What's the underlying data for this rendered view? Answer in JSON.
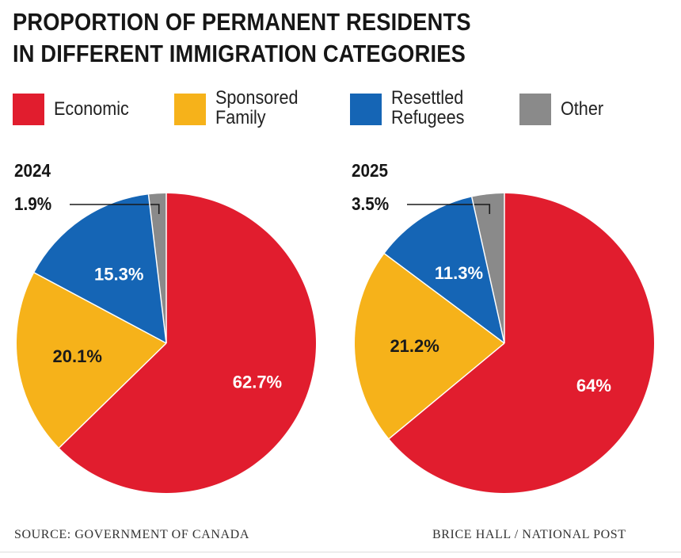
{
  "title_lines": [
    "PROPORTION OF PERMANENT RESIDENTS",
    "IN DIFFERENT IMMIGRATION CATEGORIES"
  ],
  "legend": [
    {
      "lines": [
        "Economic"
      ],
      "color": "#e11d2e"
    },
    {
      "lines": [
        "Sponsored",
        "Family"
      ],
      "color": "#f6b21a"
    },
    {
      "lines": [
        "Resettled",
        "Refugees"
      ],
      "color": "#1565b5"
    },
    {
      "lines": [
        "Other"
      ],
      "color": "#8a8a8a"
    }
  ],
  "chart_data": [
    {
      "type": "pie",
      "title": "2024",
      "labels": [
        "Economic",
        "Sponsored Family",
        "Resettled Refugees",
        "Other"
      ],
      "values": [
        62.7,
        20.1,
        15.3,
        1.9
      ],
      "value_labels": [
        "62.7%",
        "20.1%",
        "15.3%",
        "1.9%"
      ],
      "colors": [
        "#e11d2e",
        "#f6b21a",
        "#1565b5",
        "#8a8a8a"
      ]
    },
    {
      "type": "pie",
      "title": "2025",
      "labels": [
        "Economic",
        "Sponsored Family",
        "Resettled Refugees",
        "Other"
      ],
      "values": [
        64,
        21.2,
        11.3,
        3.5
      ],
      "value_labels": [
        "64%",
        "21.2%",
        "11.3%",
        "3.5%"
      ],
      "colors": [
        "#e11d2e",
        "#f6b21a",
        "#1565b5",
        "#8a8a8a"
      ]
    }
  ],
  "footer": {
    "source": "SOURCE: GOVERNMENT OF CANADA",
    "credit": "BRICE HALL  / NATIONAL POST"
  }
}
